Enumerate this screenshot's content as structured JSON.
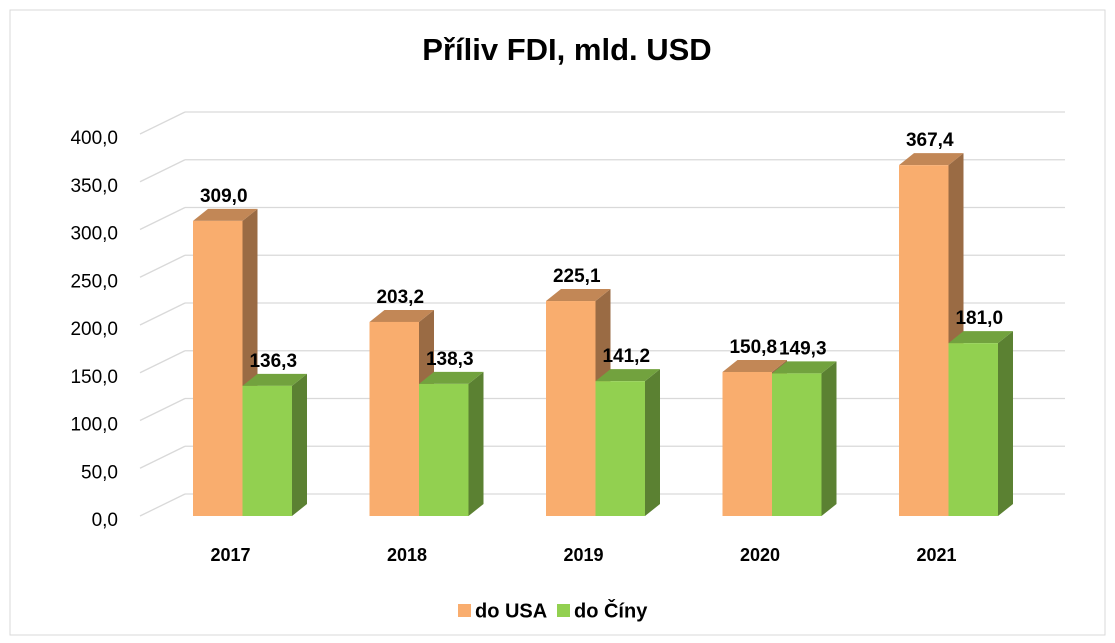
{
  "chart_data": {
    "type": "bar3d",
    "title": "Příliv FDI, mld. USD",
    "categories": [
      "2017",
      "2018",
      "2019",
      "2020",
      "2021"
    ],
    "series": [
      {
        "name": "do USA",
        "color": "#f9ad6e",
        "values": [
          309.0,
          203.2,
          225.1,
          150.8,
          367.4
        ],
        "value_labels": [
          "309,0",
          "203,2",
          "225,1",
          "150,8",
          "367,4"
        ]
      },
      {
        "name": "do Číny",
        "color": "#92d050",
        "values": [
          136.3,
          138.3,
          141.2,
          149.3,
          181.0
        ],
        "value_labels": [
          "136,3",
          "138,3",
          "141,2",
          "149,3",
          "181,0"
        ]
      }
    ],
    "ylim": [
      0,
      400
    ],
    "yticks": [
      {
        "value": 0,
        "label": "0,0"
      },
      {
        "value": 50,
        "label": "50,0"
      },
      {
        "value": 100,
        "label": "100,0"
      },
      {
        "value": 150,
        "label": "150,0"
      },
      {
        "value": 200,
        "label": "200,0"
      },
      {
        "value": 250,
        "label": "250,0"
      },
      {
        "value": 300,
        "label": "300,0"
      },
      {
        "value": 350,
        "label": "350,0"
      },
      {
        "value": 400,
        "label": "400,0"
      }
    ],
    "grid": true,
    "legend": "bottom"
  }
}
